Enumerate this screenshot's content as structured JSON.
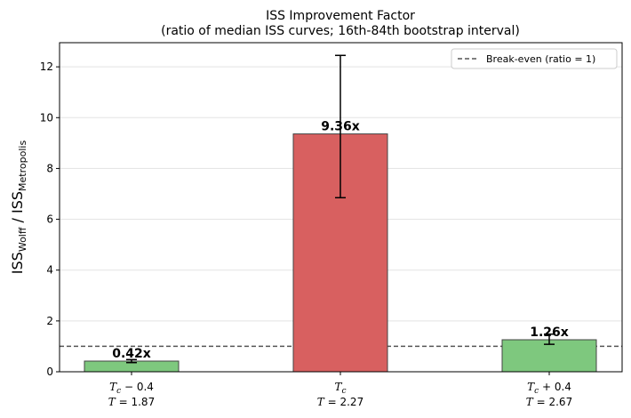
{
  "chart_data": {
    "type": "bar",
    "title_line1": "ISS Improvement Factor",
    "title_line2": "(ratio of median ISS curves; 16th-84th bootstrap interval)",
    "ylabel": {
      "main1": "ISS",
      "sub1": "Wolff",
      "sep": " / ISS",
      "sub2": "Metropolis"
    },
    "xlabel": "",
    "ylim": [
      0,
      12.95
    ],
    "yticks": [
      0,
      2,
      4,
      6,
      8,
      10,
      12
    ],
    "grid": "y",
    "categories": [
      {
        "line1_sym": "T",
        "line1_sub": "c",
        "line1_rest": " − 0.4",
        "line2_sym": "T",
        "line2_rest": " = 1.87"
      },
      {
        "line1_sym": "T",
        "line1_sub": "c",
        "line1_rest": "",
        "line2_sym": "T",
        "line2_rest": " = 2.27"
      },
      {
        "line1_sym": "T",
        "line1_sub": "c",
        "line1_rest": " + 0.4",
        "line2_sym": "T",
        "line2_rest": " = 2.67"
      }
    ],
    "values": [
      0.42,
      9.36,
      1.26
    ],
    "err_low": [
      0.36,
      6.85,
      1.08
    ],
    "err_high": [
      0.48,
      12.45,
      1.48
    ],
    "data_labels": [
      "0.42x",
      "9.36x",
      "1.26x"
    ],
    "bar_colors": [
      "#7ec87e",
      "#d86060",
      "#7ec87e"
    ],
    "reference_line": {
      "value": 1,
      "label": "Break-even (ratio = 1)",
      "color": "#555555"
    },
    "legend_position": "top-right"
  }
}
